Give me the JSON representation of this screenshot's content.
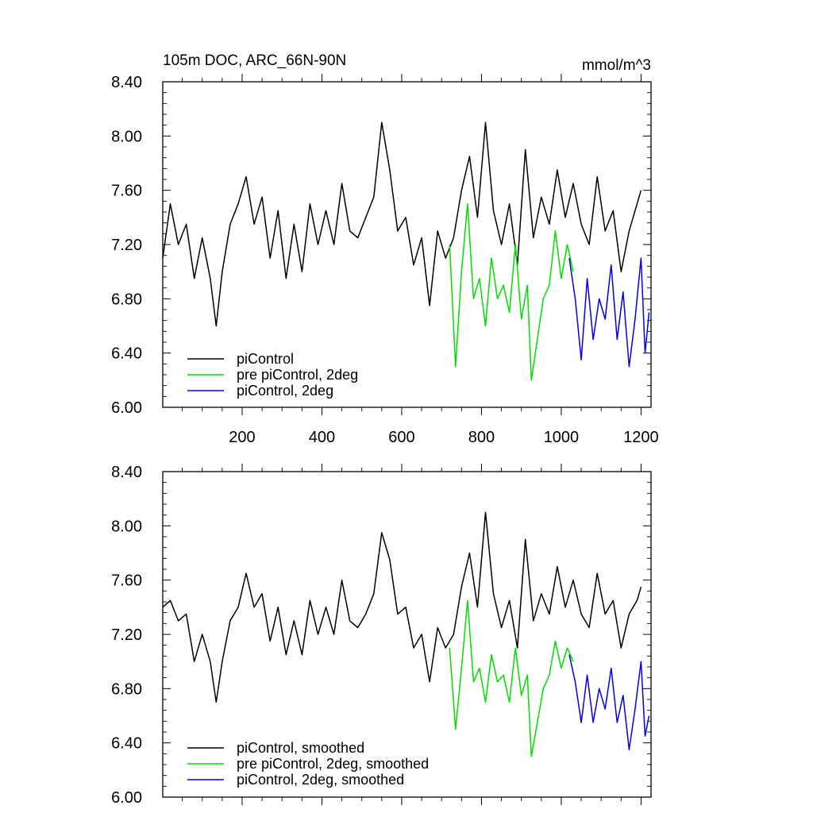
{
  "chart_data": [
    {
      "type": "line",
      "title": "105m DOC, ARC_66N-90N",
      "units": "mmol/m^3",
      "xlim": [
        1,
        1225
      ],
      "ylim": [
        6.0,
        8.4
      ],
      "xticks": [
        200,
        400,
        600,
        800,
        1000,
        1200
      ],
      "xtick_labels": [
        "200",
        "400",
        "600",
        "800",
        "1000",
        "1200"
      ],
      "yticks": [
        6.0,
        6.4,
        6.8,
        7.2,
        7.6,
        8.0,
        8.4
      ],
      "ytick_labels": [
        "6.00",
        "6.40",
        "6.80",
        "7.20",
        "7.60",
        "8.00",
        "8.40"
      ],
      "legend_position": "bottom-left",
      "series": [
        {
          "name": "piControl",
          "color": "#000000",
          "x": [
            1,
            20,
            40,
            60,
            80,
            100,
            120,
            135,
            150,
            170,
            190,
            210,
            230,
            250,
            270,
            290,
            310,
            330,
            350,
            370,
            390,
            410,
            430,
            450,
            470,
            490,
            510,
            530,
            550,
            570,
            590,
            610,
            630,
            650,
            670,
            690,
            710,
            730,
            750,
            770,
            790,
            810,
            830,
            850,
            870,
            890,
            910,
            930,
            950,
            970,
            990,
            1010,
            1030,
            1050,
            1070,
            1090,
            1110,
            1130,
            1150,
            1170,
            1190,
            1200
          ],
          "values": [
            7.1,
            7.5,
            7.2,
            7.35,
            6.95,
            7.25,
            6.95,
            6.6,
            7.0,
            7.35,
            7.5,
            7.7,
            7.35,
            7.55,
            7.1,
            7.45,
            6.95,
            7.35,
            7.0,
            7.5,
            7.2,
            7.45,
            7.2,
            7.65,
            7.3,
            7.25,
            7.4,
            7.55,
            8.1,
            7.75,
            7.3,
            7.4,
            7.05,
            7.25,
            6.75,
            7.3,
            7.1,
            7.25,
            7.6,
            7.85,
            7.4,
            8.1,
            7.45,
            7.2,
            7.5,
            7.05,
            7.9,
            7.25,
            7.55,
            7.35,
            7.75,
            7.4,
            7.65,
            7.35,
            7.2,
            7.7,
            7.3,
            7.45,
            7.0,
            7.3,
            7.5,
            7.6
          ]
        },
        {
          "name": "pre piControl, 2deg",
          "color": "#00dd00",
          "x": [
            720,
            735,
            750,
            765,
            780,
            795,
            810,
            825,
            840,
            855,
            870,
            885,
            900,
            915,
            925,
            940,
            955,
            970,
            985,
            1000,
            1015,
            1030
          ],
          "values": [
            7.2,
            6.3,
            7.0,
            7.5,
            6.8,
            6.95,
            6.6,
            7.1,
            6.8,
            6.9,
            6.7,
            7.2,
            6.65,
            6.9,
            6.2,
            6.5,
            6.8,
            6.9,
            7.3,
            6.95,
            7.2,
            7.0
          ]
        },
        {
          "name": "piControl, 2deg",
          "color": "#0000ee",
          "x": [
            1020,
            1035,
            1050,
            1065,
            1080,
            1095,
            1110,
            1125,
            1140,
            1155,
            1170,
            1185,
            1200,
            1210,
            1220
          ],
          "values": [
            7.1,
            6.8,
            6.35,
            6.95,
            6.5,
            6.8,
            6.65,
            7.05,
            6.5,
            6.85,
            6.3,
            6.65,
            7.1,
            6.4,
            6.7
          ]
        }
      ]
    },
    {
      "type": "line",
      "title": "",
      "xlim": [
        1,
        1225
      ],
      "ylim": [
        6.0,
        8.4
      ],
      "xticks": [
        200,
        400,
        600,
        800,
        1000,
        1200
      ],
      "yticks": [
        6.0,
        6.4,
        6.8,
        7.2,
        7.6,
        8.0,
        8.4
      ],
      "ytick_labels": [
        "6.00",
        "6.40",
        "6.80",
        "7.20",
        "7.60",
        "8.00",
        "8.40"
      ],
      "legend_position": "bottom-left",
      "series": [
        {
          "name": "piControl, smoothed",
          "color": "#000000",
          "x": [
            1,
            20,
            40,
            60,
            80,
            100,
            120,
            135,
            150,
            170,
            190,
            210,
            230,
            250,
            270,
            290,
            310,
            330,
            350,
            370,
            390,
            410,
            430,
            450,
            470,
            490,
            510,
            530,
            550,
            570,
            590,
            610,
            630,
            650,
            670,
            690,
            710,
            730,
            750,
            770,
            790,
            810,
            830,
            850,
            870,
            890,
            910,
            930,
            950,
            970,
            990,
            1010,
            1030,
            1050,
            1070,
            1090,
            1110,
            1130,
            1150,
            1170,
            1190,
            1200
          ],
          "values": [
            7.4,
            7.45,
            7.3,
            7.35,
            7.0,
            7.2,
            7.0,
            6.7,
            7.0,
            7.3,
            7.4,
            7.65,
            7.4,
            7.5,
            7.15,
            7.4,
            7.05,
            7.3,
            7.05,
            7.45,
            7.2,
            7.4,
            7.2,
            7.6,
            7.3,
            7.25,
            7.35,
            7.5,
            7.95,
            7.75,
            7.35,
            7.4,
            7.1,
            7.2,
            6.85,
            7.25,
            7.1,
            7.2,
            7.55,
            7.8,
            7.4,
            8.1,
            7.5,
            7.25,
            7.45,
            7.1,
            7.9,
            7.3,
            7.5,
            7.35,
            7.7,
            7.4,
            7.6,
            7.35,
            7.25,
            7.65,
            7.35,
            7.45,
            7.1,
            7.35,
            7.45,
            7.55
          ]
        },
        {
          "name": "pre piControl, 2deg, smoothed",
          "color": "#00dd00",
          "x": [
            720,
            735,
            750,
            765,
            780,
            795,
            810,
            825,
            840,
            855,
            870,
            885,
            900,
            915,
            925,
            940,
            955,
            970,
            985,
            1000,
            1015,
            1030
          ],
          "values": [
            7.1,
            6.5,
            6.95,
            7.45,
            6.85,
            6.95,
            6.7,
            7.05,
            6.85,
            6.9,
            6.7,
            7.1,
            6.75,
            6.9,
            6.3,
            6.55,
            6.8,
            6.9,
            7.15,
            6.95,
            7.1,
            7.0
          ]
        },
        {
          "name": "piControl, 2deg, smoothed",
          "color": "#0000ee",
          "x": [
            1020,
            1035,
            1050,
            1065,
            1080,
            1095,
            1110,
            1125,
            1140,
            1155,
            1170,
            1185,
            1200,
            1210,
            1220
          ],
          "values": [
            7.05,
            6.85,
            6.55,
            6.9,
            6.55,
            6.8,
            6.65,
            6.95,
            6.55,
            6.75,
            6.35,
            6.65,
            7.0,
            6.45,
            6.6
          ]
        }
      ]
    }
  ]
}
